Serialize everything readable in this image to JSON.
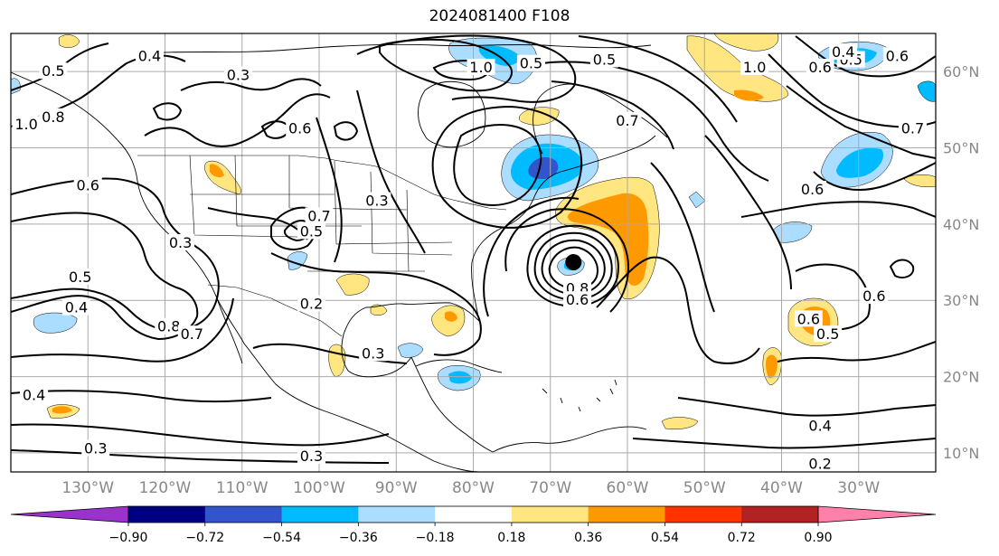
{
  "title": "2024081400 F108",
  "map": {
    "lon_range": [
      -140,
      -20
    ],
    "lat_range": [
      7.5,
      65
    ],
    "lat_ticks": [
      {
        "lat": 60,
        "label": "60°N"
      },
      {
        "lat": 50,
        "label": "50°N"
      },
      {
        "lat": 40,
        "label": "40°N"
      },
      {
        "lat": 30,
        "label": "30°N"
      },
      {
        "lat": 20,
        "label": "20°N"
      },
      {
        "lat": 10,
        "label": "10°N"
      }
    ],
    "lon_ticks": [
      {
        "lon": -130,
        "label": "130°W"
      },
      {
        "lon": -120,
        "label": "120°W"
      },
      {
        "lon": -110,
        "label": "110°W"
      },
      {
        "lon": -100,
        "label": "100°W"
      },
      {
        "lon": -90,
        "label": "90°W"
      },
      {
        "lon": -80,
        "label": "80°W"
      },
      {
        "lon": -70,
        "label": "70°W"
      },
      {
        "lon": -60,
        "label": "60°W"
      },
      {
        "lon": -50,
        "label": "50°W"
      },
      {
        "lon": -40,
        "label": "40°W"
      },
      {
        "lon": -30,
        "label": "30°W"
      }
    ],
    "grid": true,
    "storm_marker": {
      "lon": -67,
      "lat": 35
    },
    "contour_labels": [
      {
        "text": "0.4",
        "lon": -122,
        "lat": 62
      },
      {
        "text": "0.5",
        "lon": -134.5,
        "lat": 60
      },
      {
        "text": "0.3",
        "lon": -110.5,
        "lat": 59.5
      },
      {
        "text": "1.0",
        "lon": -138,
        "lat": 53
      },
      {
        "text": "0.8",
        "lon": -134.5,
        "lat": 54
      },
      {
        "text": "0.6",
        "lon": -102.5,
        "lat": 52.5
      },
      {
        "text": "0.6",
        "lon": -130,
        "lat": 45
      },
      {
        "text": "0.3",
        "lon": -92.5,
        "lat": 43
      },
      {
        "text": "0.7",
        "lon": -100,
        "lat": 41
      },
      {
        "text": "0.5",
        "lon": -101,
        "lat": 39
      },
      {
        "text": "0.3",
        "lon": -118,
        "lat": 37.5
      },
      {
        "text": "0.5",
        "lon": -131,
        "lat": 33
      },
      {
        "text": "0.4",
        "lon": -131.5,
        "lat": 29
      },
      {
        "text": "0.2",
        "lon": -101,
        "lat": 29.5
      },
      {
        "text": "0.8",
        "lon": -119.5,
        "lat": 26.5
      },
      {
        "text": "0.7",
        "lon": -116.5,
        "lat": 25.5
      },
      {
        "text": "0.3",
        "lon": -93,
        "lat": 23
      },
      {
        "text": "0.4",
        "lon": -137,
        "lat": 17.5
      },
      {
        "text": "0.3",
        "lon": -129,
        "lat": 10.5
      },
      {
        "text": "0.3",
        "lon": -101,
        "lat": 9.5
      },
      {
        "text": "1.0",
        "lon": -79,
        "lat": 60.5
      },
      {
        "text": "0.5",
        "lon": -72.5,
        "lat": 61
      },
      {
        "text": "0.5",
        "lon": -63,
        "lat": 61.5
      },
      {
        "text": "0.7",
        "lon": -60,
        "lat": 53.5
      },
      {
        "text": "0.8",
        "lon": -66.5,
        "lat": 31.5
      },
      {
        "text": "0.6",
        "lon": -66.5,
        "lat": 30
      },
      {
        "text": "1.0",
        "lon": -43.5,
        "lat": 60.5
      },
      {
        "text": "0.6",
        "lon": -35,
        "lat": 60.5
      },
      {
        "text": "0.5",
        "lon": -31,
        "lat": 61.5
      },
      {
        "text": "0.4",
        "lon": -32,
        "lat": 62.5
      },
      {
        "text": "0.6",
        "lon": -25,
        "lat": 62
      },
      {
        "text": "0.7",
        "lon": -23,
        "lat": 52.5
      },
      {
        "text": "0.6",
        "lon": -36,
        "lat": 44.5
      },
      {
        "text": "0.6",
        "lon": -28,
        "lat": 30.5
      },
      {
        "text": "0.6",
        "lon": -36.5,
        "lat": 27.5
      },
      {
        "text": "0.5",
        "lon": -34,
        "lat": 25.5
      },
      {
        "text": "0.4",
        "lon": -35,
        "lat": 13.5
      },
      {
        "text": "0.2",
        "lon": -35,
        "lat": 8.5
      }
    ]
  },
  "colorbar": {
    "colors": [
      "#9933cc",
      "#000080",
      "#3355cc",
      "#00bbff",
      "#aaddff",
      "#ffffff",
      "#ffe680",
      "#ff9900",
      "#ff3300",
      "#b22222",
      "#ff80aa"
    ],
    "under_color": "#9933cc",
    "over_color": "#ff80aa",
    "tick_labels": [
      "−0.90",
      "−0.72",
      "−0.54",
      "−0.36",
      "−0.18",
      "0.18",
      "0.36",
      "0.54",
      "0.72",
      "0.90"
    ]
  },
  "colors": {
    "neg_light": "#aaddff",
    "neg_mid": "#00bbff",
    "neg_strong": "#3355cc",
    "pos_light": "#ffe680",
    "pos_mid": "#ff9900",
    "contour": "#000000",
    "coast": "#000000",
    "grid": "#aaaaaa"
  }
}
